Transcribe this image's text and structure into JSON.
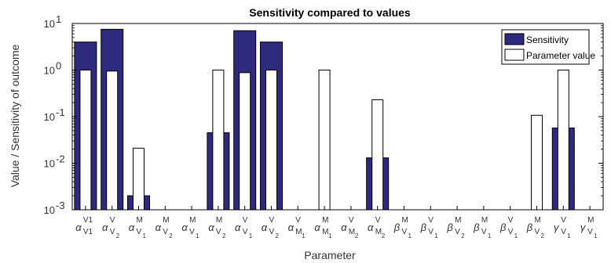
{
  "chart_data": {
    "type": "bar",
    "title": "Sensitivity compared to values",
    "xlabel": "Parameter",
    "ylabel": "Value / Sensitivity of outcome",
    "yscale": "log",
    "ylim": [
      0.001,
      10
    ],
    "yticks": [
      {
        "value": 0.001,
        "base": "10",
        "exp": "-3"
      },
      {
        "value": 0.01,
        "base": "10",
        "exp": "-2"
      },
      {
        "value": 0.1,
        "base": "10",
        "exp": "-1"
      },
      {
        "value": 1,
        "base": "10",
        "exp": "0"
      },
      {
        "value": 10,
        "base": "10",
        "exp": "1"
      }
    ],
    "categories": [
      {
        "sym": "α",
        "sup": "V1",
        "sub": "V1",
        "subsub": ""
      },
      {
        "sym": "α",
        "sup": "V",
        "sub": "V",
        "subsub": "2"
      },
      {
        "sym": "α",
        "sup": "M",
        "sub": "V",
        "subsub": "1"
      },
      {
        "sym": "α",
        "sup": "M",
        "sub": "V",
        "subsub": "2"
      },
      {
        "sym": "α",
        "sup": "M",
        "sub": "V",
        "subsub": "1"
      },
      {
        "sym": "α",
        "sup": "M",
        "sub": "V",
        "subsub": "2"
      },
      {
        "sym": "α",
        "sup": "V",
        "sub": "V",
        "subsub": "1"
      },
      {
        "sym": "α",
        "sup": "V",
        "sub": "V",
        "subsub": "2"
      },
      {
        "sym": "α",
        "sup": "V",
        "sub": "M",
        "subsub": "1"
      },
      {
        "sym": "α",
        "sup": "M",
        "sub": "M",
        "subsub": "1"
      },
      {
        "sym": "α",
        "sup": "V",
        "sub": "M",
        "subsub": "2"
      },
      {
        "sym": "α",
        "sup": "V",
        "sub": "M",
        "subsub": "2"
      },
      {
        "sym": "β",
        "sup": "M",
        "sub": "V",
        "subsub": "1"
      },
      {
        "sym": "β",
        "sup": "V",
        "sub": "V",
        "subsub": "1"
      },
      {
        "sym": "β",
        "sup": "M",
        "sub": "V",
        "subsub": "2"
      },
      {
        "sym": "β",
        "sup": "M",
        "sub": "V",
        "subsub": "1"
      },
      {
        "sym": "β",
        "sup": "V",
        "sub": "V",
        "subsub": "1"
      },
      {
        "sym": "β",
        "sup": "M",
        "sub": "V",
        "subsub": "2"
      },
      {
        "sym": "γ",
        "sup": "V",
        "sub": "V",
        "subsub": "1"
      },
      {
        "sym": "γ",
        "sup": "M",
        "sub": "V",
        "subsub": "1"
      }
    ],
    "series": [
      {
        "name": "Sensitivity",
        "color": "#2e2a7e",
        "values": [
          4,
          7.5,
          0.002,
          0,
          0,
          0.045,
          7,
          4,
          0,
          0,
          0,
          0.013,
          0,
          0,
          0,
          0,
          0,
          0,
          0.057,
          0
        ]
      },
      {
        "name": "Parameter value",
        "color": "#ffffff",
        "values": [
          1,
          0.95,
          0.021,
          0,
          0,
          1,
          0.88,
          1,
          0,
          1,
          0,
          0.23,
          0,
          0,
          0,
          0,
          0,
          0.107,
          1,
          0
        ]
      }
    ],
    "legend": "top-right",
    "grid": false
  }
}
